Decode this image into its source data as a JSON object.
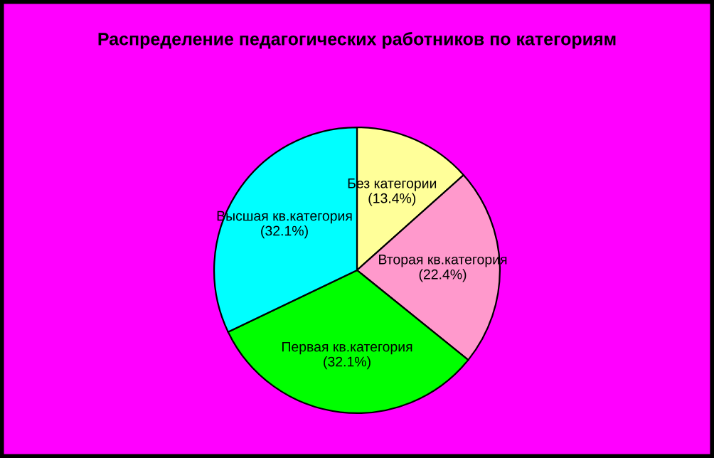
{
  "chart_data": {
    "type": "pie",
    "title": "Распределение педагогических работников по категориям",
    "categories": [
      "Без категории",
      "Вторая кв.категория",
      "Первая кв.категория",
      "Высшая кв.категория"
    ],
    "values": [
      13.4,
      22.4,
      32.1,
      32.1
    ],
    "value_labels": [
      "(13.4%)",
      "(22.4%)",
      "(32.1%)",
      "(32.1%)"
    ],
    "colors": [
      "#ffff99",
      "#ff99cc",
      "#00ff00",
      "#00ffff"
    ],
    "legend": false
  }
}
